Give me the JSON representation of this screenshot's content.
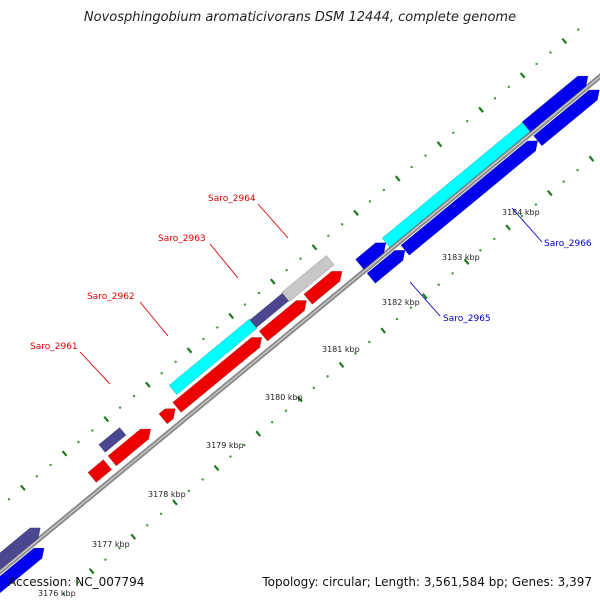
{
  "title": "Novosphingobium aromaticivorans DSM 12444, complete genome",
  "accession": "Accession: NC_007794",
  "topology": "Topology: circular; Length: 3,561,584 bp; Genes: 3,397",
  "colors": {
    "backbone": "#8a8a8a",
    "tick_dot": "#3a9a3a",
    "tick_dash": "#1e7a1e",
    "forward_gene": "#0000ee",
    "forward_gene_dark": "#4b4690",
    "reverse_gene": "#ee0000",
    "highlight_cds": "#00ffff",
    "grey_cds": "#c8c8c8",
    "label_reverse": "#dd0000",
    "label_forward": "#0000cc"
  },
  "ticks": [
    "3176 kbp",
    "3177 kbp",
    "3178 kbp",
    "3179 kbp",
    "3180 kbp",
    "3181 kbp",
    "3182 kbp",
    "3183 kbp",
    "3184 kbp"
  ],
  "gene_labels": [
    {
      "id": "saro-2961",
      "text": "Saro_2961",
      "strand": "reverse"
    },
    {
      "id": "saro-2962",
      "text": "Saro_2962",
      "strand": "reverse"
    },
    {
      "id": "saro-2963",
      "text": "Saro_2963",
      "strand": "reverse"
    },
    {
      "id": "saro-2964",
      "text": "Saro_2964",
      "strand": "reverse"
    },
    {
      "id": "saro-2965",
      "text": "Saro_2965",
      "strand": "forward"
    },
    {
      "id": "saro-2966",
      "text": "Saro_2966",
      "strand": "forward"
    }
  ]
}
